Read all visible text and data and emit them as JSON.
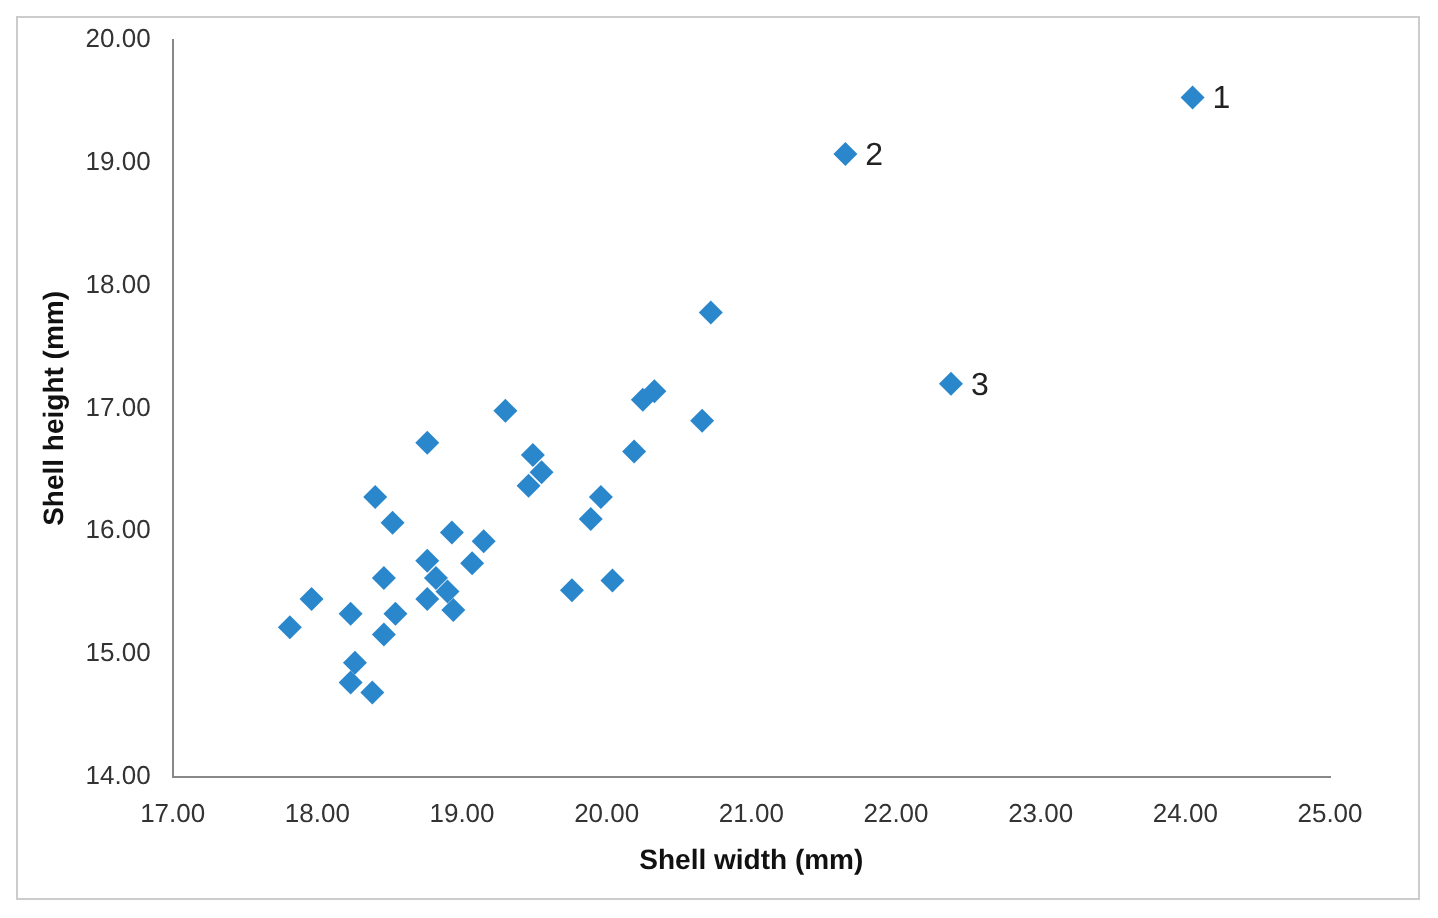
{
  "chart_data": {
    "type": "scatter",
    "xlabel": "Shell width (mm)",
    "ylabel": "Shell height (mm)",
    "series": [
      {
        "color": "#2a87cc",
        "x": [
          17.81,
          17.96,
          18.23,
          18.26,
          18.23,
          18.38,
          18.46,
          18.4,
          18.52,
          18.76,
          18.46,
          18.54,
          18.76,
          18.76,
          18.82,
          18.9,
          18.94,
          18.93,
          19.07,
          19.15,
          19.3,
          19.49,
          19.55,
          19.46,
          19.89,
          19.96,
          19.76,
          20.04,
          20.19,
          20.25,
          20.33,
          20.66,
          20.72,
          24.05,
          21.65,
          22.38
        ],
        "values": [
          15.22,
          15.45,
          15.33,
          14.93,
          14.77,
          14.69,
          15.62,
          16.28,
          16.07,
          16.72,
          15.16,
          15.33,
          15.45,
          15.76,
          15.62,
          15.51,
          15.36,
          15.99,
          15.74,
          15.92,
          16.98,
          16.62,
          16.48,
          16.37,
          16.1,
          16.28,
          15.52,
          15.6,
          16.65,
          17.07,
          17.14,
          16.9,
          17.78,
          19.53,
          19.07,
          17.2
        ]
      }
    ],
    "annotations": [
      {
        "text": "1",
        "x": 24.05,
        "y": 19.53
      },
      {
        "text": "2",
        "x": 21.65,
        "y": 19.07
      },
      {
        "text": "3",
        "x": 22.38,
        "y": 17.2
      }
    ],
    "xlim": [
      17,
      25
    ],
    "xticks": [
      {
        "value": 17,
        "label": "17.00"
      },
      {
        "value": 18,
        "label": "18.00"
      },
      {
        "value": 19,
        "label": "19.00"
      },
      {
        "value": 20,
        "label": "20.00"
      },
      {
        "value": 21,
        "label": "21.00"
      },
      {
        "value": 22,
        "label": "22.00"
      },
      {
        "value": 23,
        "label": "23.00"
      },
      {
        "value": 24,
        "label": "24.00"
      },
      {
        "value": 25,
        "label": "25.00"
      }
    ],
    "ylim": [
      14,
      20
    ],
    "yticks": [
      {
        "value": 14,
        "label": "14.00"
      },
      {
        "value": 15,
        "label": "15.00"
      },
      {
        "value": 16,
        "label": "16.00"
      },
      {
        "value": 17,
        "label": "17.00"
      },
      {
        "value": 18,
        "label": "18.00"
      },
      {
        "value": 19,
        "label": "19.00"
      },
      {
        "value": 20,
        "label": "20.00"
      }
    ],
    "marker": "diamond",
    "grid": false,
    "legend": false
  }
}
